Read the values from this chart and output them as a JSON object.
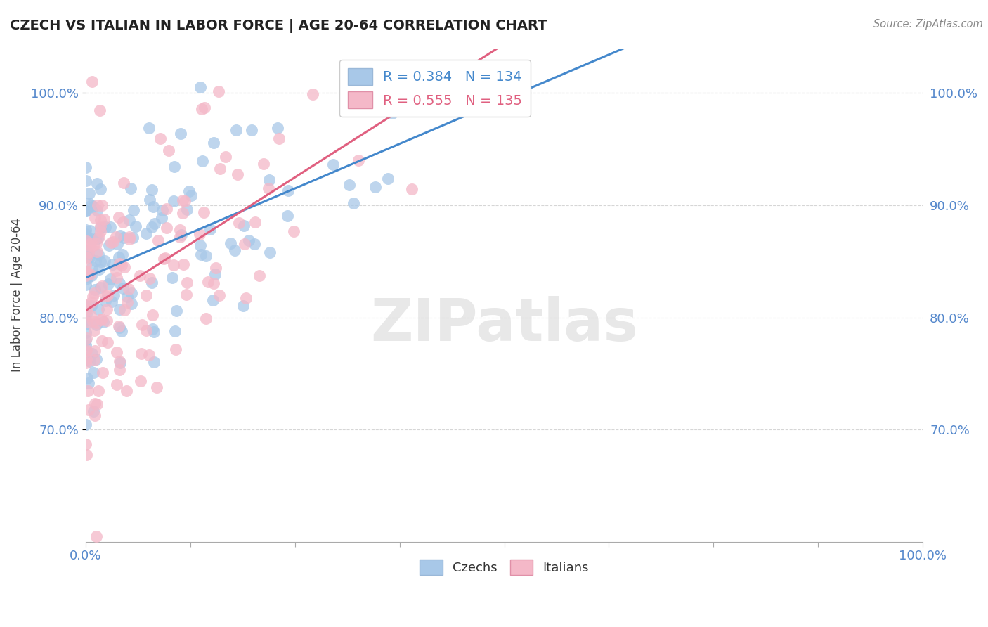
{
  "title": "CZECH VS ITALIAN IN LABOR FORCE | AGE 20-64 CORRELATION CHART",
  "source": "Source: ZipAtlas.com",
  "ylabel": "In Labor Force | Age 20-64",
  "xlim": [
    0.0,
    1.0
  ],
  "ylim": [
    0.6,
    1.04
  ],
  "yticks": [
    0.7,
    0.8,
    0.9,
    1.0
  ],
  "ytick_labels": [
    "70.0%",
    "80.0%",
    "90.0%",
    "100.0%"
  ],
  "czechs_color": "#a8c8e8",
  "italians_color": "#f4b8c8",
  "czechs_line_color": "#4488cc",
  "italians_line_color": "#e06080",
  "R_czech": 0.384,
  "N_czech": 134,
  "R_italian": 0.555,
  "N_italian": 135,
  "watermark": "ZIPatlas",
  "background_color": "#ffffff",
  "grid_color": "#cccccc",
  "seed": 17
}
